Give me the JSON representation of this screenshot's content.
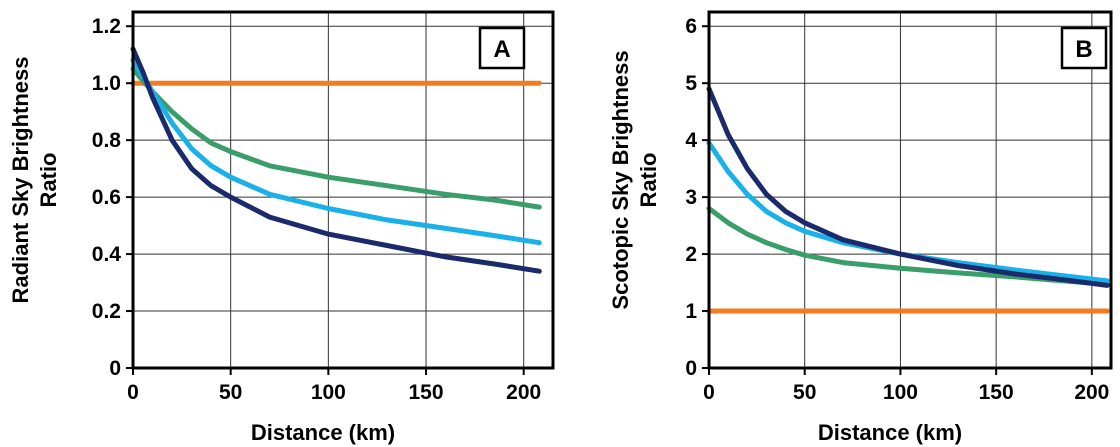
{
  "colors": {
    "orange": "#f47b20",
    "green": "#3a9e6a",
    "lightblue": "#1ab0e8",
    "navy": "#1b2a6b",
    "grid": "#333333"
  },
  "chart_data": [
    {
      "type": "line",
      "panel_label": "A",
      "xlabel": "Distance (km)",
      "ylabel_lines": [
        "Radiant Sky Brightness",
        "Ratio"
      ],
      "xlim": [
        0,
        215
      ],
      "ylim": [
        0,
        1.25
      ],
      "xticks": [
        0,
        50,
        100,
        150,
        200
      ],
      "xtick_labels": [
        "0",
        "50",
        "100",
        "150",
        "200"
      ],
      "yticks": [
        0,
        0.2,
        0.4,
        0.6,
        0.8,
        1.0,
        1.2
      ],
      "ytick_labels": [
        "0",
        "0.2",
        "0.4",
        "0.6",
        "0.8",
        "1.0",
        "1.2"
      ],
      "grid": true,
      "series": [
        {
          "color_key": "orange",
          "x": [
            0,
            208
          ],
          "y": [
            1.0,
            1.0
          ]
        },
        {
          "color_key": "green",
          "x": [
            0,
            10,
            20,
            30,
            40,
            50,
            70,
            100,
            130,
            160,
            185,
            208
          ],
          "y": [
            1.05,
            0.97,
            0.9,
            0.84,
            0.79,
            0.76,
            0.71,
            0.67,
            0.64,
            0.61,
            0.59,
            0.565
          ]
        },
        {
          "color_key": "lightblue",
          "x": [
            0,
            10,
            20,
            30,
            40,
            50,
            70,
            100,
            130,
            160,
            185,
            208
          ],
          "y": [
            1.08,
            0.97,
            0.86,
            0.77,
            0.71,
            0.67,
            0.61,
            0.56,
            0.52,
            0.49,
            0.465,
            0.44
          ]
        },
        {
          "color_key": "navy",
          "x": [
            0,
            5,
            10,
            20,
            30,
            40,
            50,
            70,
            100,
            130,
            160,
            185,
            208
          ],
          "y": [
            1.12,
            1.04,
            0.95,
            0.8,
            0.7,
            0.64,
            0.6,
            0.53,
            0.47,
            0.43,
            0.39,
            0.365,
            0.34
          ]
        }
      ]
    },
    {
      "type": "line",
      "panel_label": "B",
      "xlabel": "Distance (km)",
      "ylabel_lines": [
        "Scotopic Sky Brightness",
        "Ratio"
      ],
      "xlim": [
        0,
        210
      ],
      "ylim": [
        0,
        6.25
      ],
      "xticks": [
        0,
        50,
        100,
        150,
        200
      ],
      "xtick_labels": [
        "0",
        "50",
        "100",
        "150",
        "200"
      ],
      "yticks": [
        0,
        1,
        2,
        3,
        4,
        5,
        6
      ],
      "ytick_labels": [
        "0",
        "1",
        "2",
        "3",
        "4",
        "5",
        "6"
      ],
      "grid": true,
      "series": [
        {
          "color_key": "orange",
          "x": [
            0,
            208
          ],
          "y": [
            1.0,
            1.0
          ]
        },
        {
          "color_key": "green",
          "x": [
            0,
            10,
            20,
            30,
            40,
            50,
            70,
            100,
            130,
            160,
            185,
            208
          ],
          "y": [
            2.8,
            2.55,
            2.35,
            2.2,
            2.08,
            1.98,
            1.85,
            1.75,
            1.67,
            1.6,
            1.53,
            1.47
          ]
        },
        {
          "color_key": "lightblue",
          "x": [
            0,
            10,
            20,
            30,
            40,
            50,
            70,
            100,
            130,
            160,
            185,
            208
          ],
          "y": [
            3.95,
            3.45,
            3.05,
            2.75,
            2.55,
            2.4,
            2.2,
            2.0,
            1.85,
            1.72,
            1.62,
            1.53
          ]
        },
        {
          "color_key": "navy",
          "x": [
            0,
            10,
            20,
            30,
            40,
            50,
            70,
            100,
            130,
            160,
            185,
            208
          ],
          "y": [
            4.9,
            4.1,
            3.5,
            3.05,
            2.75,
            2.55,
            2.25,
            2.0,
            1.8,
            1.65,
            1.55,
            1.45
          ]
        }
      ]
    }
  ]
}
